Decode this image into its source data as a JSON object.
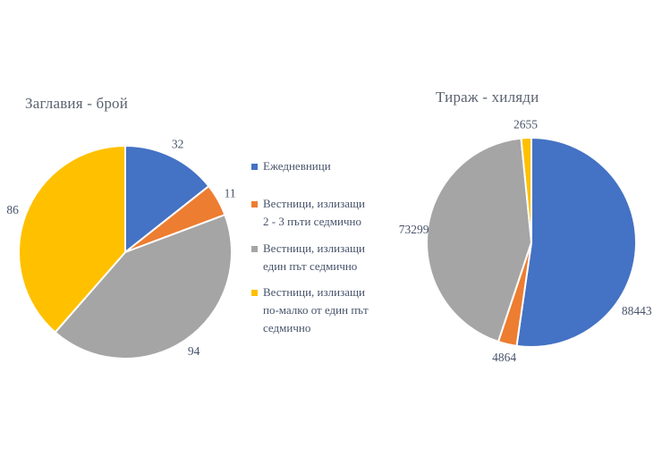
{
  "page": {
    "background": "#ffffff"
  },
  "palette": {
    "blue": "#4472C4",
    "orange": "#ED7D31",
    "gray": "#A5A5A5",
    "yellow": "#FFC000",
    "label_text": "#47536A",
    "title_text": "#5B6370"
  },
  "legend": {
    "position": "center-between-charts",
    "items": [
      {
        "label": "Ежедневници",
        "color": "#4472C4",
        "lines": [
          "Ежедневници"
        ]
      },
      {
        "label": "Вестници, излизащи 2 - 3 пъти седмично",
        "color": "#ED7D31",
        "lines": [
          "Вестници, излизащи",
          "2 - 3 пъти седмично"
        ]
      },
      {
        "label": "Вестници, излизащи един път седмично",
        "color": "#A5A5A5",
        "lines": [
          "Вестници, излизащи",
          "един път седмично"
        ]
      },
      {
        "label": "Вестници, излизащи по-малко от един път седмично",
        "color": "#FFC000",
        "lines": [
          "Вестници, излизащи",
          "по-малко от един път",
          "седмично"
        ]
      }
    ]
  },
  "chart_data": [
    {
      "type": "pie",
      "title": "Заглавия - брой",
      "categories": [
        "Ежедневници",
        "Вестници, излизащи 2 - 3 пъти седмично",
        "Вестници, излизащи един път седмично",
        "Вестници, излизащи по-малко от един път седмично"
      ],
      "values": [
        32,
        11,
        94,
        86
      ],
      "colors": [
        "#4472C4",
        "#ED7D31",
        "#A5A5A5",
        "#FFC000"
      ],
      "start_angle": 0,
      "direction": "clockwise",
      "data_labels": "outside-end"
    },
    {
      "type": "pie",
      "title": "Тираж - хиляди",
      "categories": [
        "Ежедневници",
        "Вестници, излизащи 2 - 3 пъти седмично",
        "Вестници, излизащи един път седмично",
        "Вестници, излизащи по-малко от един път седмично"
      ],
      "values": [
        88443,
        4864,
        73299,
        2655
      ],
      "colors": [
        "#4472C4",
        "#ED7D31",
        "#A5A5A5",
        "#FFC000"
      ],
      "start_angle": 0,
      "direction": "clockwise",
      "data_labels": "outside-end"
    }
  ]
}
